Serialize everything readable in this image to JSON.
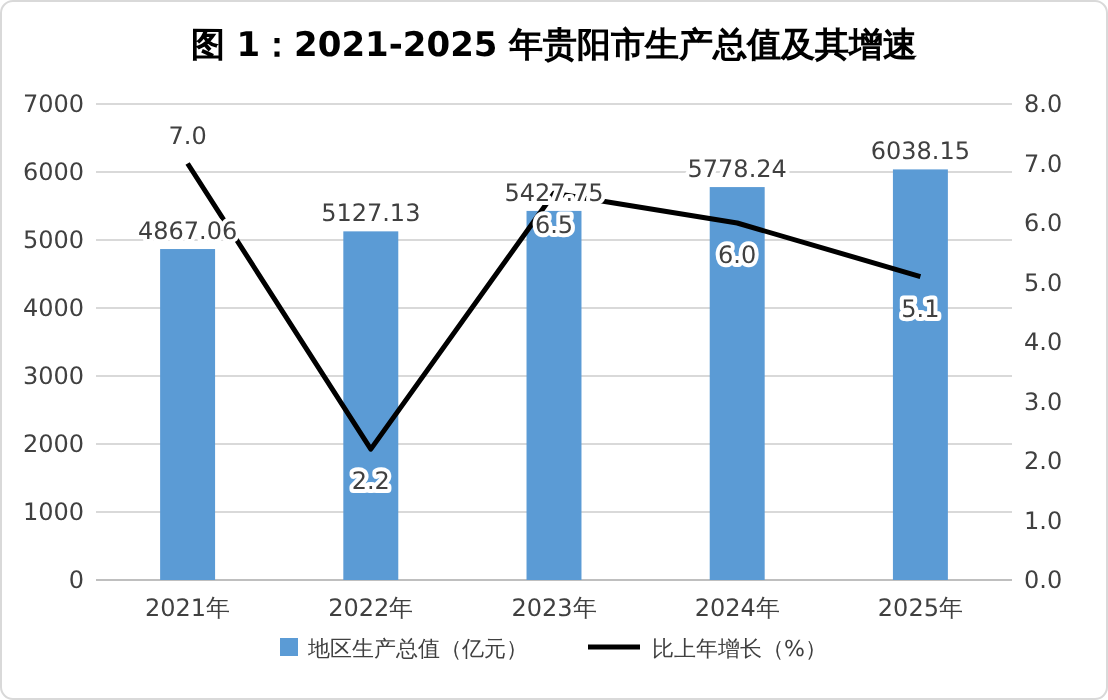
{
  "chart_data": {
    "type": "bar",
    "title": "图 1：2021-2025 年贵阳市生产总值及其增速",
    "categories": [
      "2021年",
      "2022年",
      "2023年",
      "2024年",
      "2025年"
    ],
    "series": [
      {
        "name": "地区生产总值（亿元）",
        "color": "#5b9bd5",
        "values": [
          4867.06,
          5127.13,
          5427.75,
          5778.24,
          6038.15
        ],
        "value_labels": [
          "4867.06",
          "5127.13",
          "5427.75",
          "5778.24",
          "6038.15"
        ]
      },
      {
        "name": "比上年增长（%）",
        "type": "line",
        "axis": "y2",
        "color": "#000000",
        "values": [
          7.0,
          2.2,
          6.5,
          6.0,
          5.1
        ],
        "value_labels": [
          "7.0",
          "2.2",
          "6.5",
          "6.0",
          "5.1"
        ]
      }
    ],
    "ylim": [
      0,
      7000
    ],
    "yticks": [
      0,
      1000,
      2000,
      3000,
      4000,
      5000,
      6000,
      7000
    ],
    "y2lim": [
      0,
      8
    ],
    "y2ticks": [
      {
        "value": 0,
        "label": "0.0"
      },
      {
        "value": 1,
        "label": "1.0"
      },
      {
        "value": 2,
        "label": "2.0"
      },
      {
        "value": 3,
        "label": "3.0"
      },
      {
        "value": 4,
        "label": "4.0"
      },
      {
        "value": 5,
        "label": "5.0"
      },
      {
        "value": 6,
        "label": "6.0"
      },
      {
        "value": 7,
        "label": "7.0"
      },
      {
        "value": 8,
        "label": "8.0"
      }
    ],
    "grid": "y",
    "legend": "bottom",
    "marker": "none",
    "line_style": "solid"
  }
}
